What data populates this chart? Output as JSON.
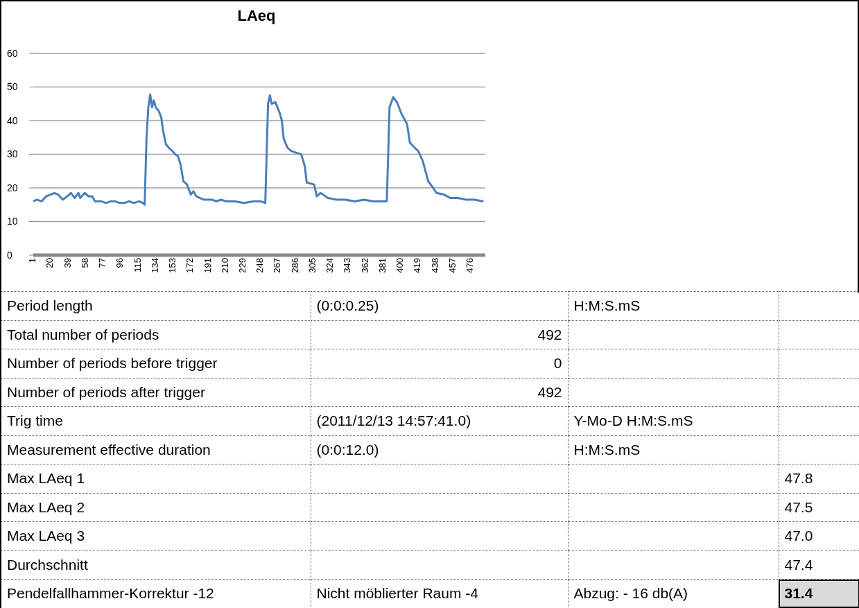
{
  "chart_data": [
    {
      "type": "line",
      "title": "LAeq",
      "grid": "y",
      "marker": "none",
      "xlim": [
        1,
        492
      ],
      "xticks": [
        1,
        20,
        39,
        58,
        77,
        96,
        115,
        134,
        153,
        172,
        191,
        210,
        229,
        248,
        267,
        286,
        305,
        324,
        343,
        362,
        381,
        400,
        419,
        438,
        457,
        476
      ],
      "ylim": [
        0,
        60
      ],
      "yticks": [
        0,
        10,
        20,
        30,
        40,
        50,
        60
      ],
      "series": [
        {
          "color": "#4a7ebb",
          "x": [
            1,
            5,
            10,
            15,
            20,
            24,
            28,
            33,
            38,
            42,
            46,
            50,
            52,
            57,
            61,
            65,
            68,
            75,
            80,
            85,
            90,
            95,
            100,
            105,
            110,
            116,
            120,
            122,
            124,
            126,
            128,
            130,
            132,
            134,
            137,
            140,
            142,
            145,
            148,
            152,
            155,
            158,
            161,
            164,
            168,
            172,
            175,
            178,
            182,
            186,
            190,
            195,
            200,
            205,
            210,
            220,
            230,
            240,
            248,
            253,
            256,
            258,
            260,
            264,
            269,
            271,
            273,
            277,
            281,
            286,
            292,
            296,
            298,
            306,
            309,
            313,
            321,
            330,
            340,
            350,
            360,
            370,
            378,
            385,
            388,
            392,
            396,
            401,
            407,
            410,
            415,
            419,
            424,
            430,
            434,
            439,
            447,
            454,
            462,
            471,
            480,
            490
          ],
          "values": [
            16,
            16.5,
            16,
            17.5,
            18,
            18.5,
            18,
            16.5,
            17.5,
            18.5,
            17,
            18.5,
            17,
            18.5,
            17.5,
            17.5,
            16,
            16,
            15.5,
            16,
            16,
            15.5,
            15.5,
            16,
            15.5,
            16,
            15.5,
            15,
            35,
            44,
            47.8,
            44,
            46,
            44,
            43,
            41,
            37,
            33,
            32,
            31,
            30,
            29.5,
            27,
            22,
            21,
            18,
            19,
            17.5,
            17,
            16.5,
            16.5,
            16.5,
            16,
            16.5,
            16,
            16,
            15.5,
            16,
            16,
            15.5,
            45,
            47.5,
            45,
            45.5,
            42,
            40,
            34.6,
            32,
            31,
            30.5,
            30,
            26.4,
            21.6,
            21,
            17.5,
            18.5,
            17,
            16.5,
            16.5,
            16,
            16.5,
            16,
            16,
            16,
            44,
            47,
            45.5,
            42,
            39,
            33.5,
            32,
            31,
            28,
            22,
            20.5,
            18.5,
            18,
            17,
            17,
            16.5,
            16.5,
            16
          ]
        }
      ]
    },
    {
      "type": "other",
      "cell_labels": [
        [
          "Period length",
          "(0:0:0.25)",
          "H:M:S.mS",
          null
        ],
        [
          "Total number of periods",
          "492",
          null,
          null
        ],
        [
          "Number of periods before trigger",
          "0",
          null,
          null
        ],
        [
          "Number of periods after trigger",
          "492",
          null,
          null
        ],
        [
          "Trig time",
          "(2011/12/13 14:57:41.0)",
          "Y-Mo-D H:M:S.mS",
          null
        ],
        [
          "Measurement effective duration",
          "(0:0:12.0)",
          "H:M:S.mS",
          null
        ],
        [
          "Max LAeq 1",
          null,
          null,
          "47.8"
        ],
        [
          "Max LAeq 2",
          null,
          null,
          "47.5"
        ],
        [
          "Max LAeq 3",
          null,
          null,
          "47.0"
        ],
        [
          "Durchschnitt",
          null,
          null,
          "47.4"
        ],
        [
          "Pendelfallhammer-Korrektur -12",
          "Nicht möblierter Raum -4",
          "Abzug: - 16 db(A)",
          "31.4"
        ]
      ]
    }
  ]
}
